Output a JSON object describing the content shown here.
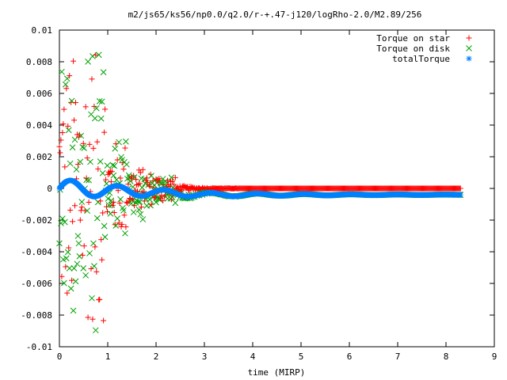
{
  "chart_data": {
    "type": "scatter",
    "title": "m2/js65/ks56/np0.0/q2.0/r-+.47-j120/logRho-2.0/M2.89/256",
    "xlabel": "time (MIRP)",
    "ylabel": "",
    "xlim": [
      0,
      9
    ],
    "ylim": [
      -0.01,
      0.01
    ],
    "x_ticks": [
      "0",
      "1",
      "2",
      "3",
      "4",
      "5",
      "6",
      "7",
      "8",
      "9"
    ],
    "y_ticks": [
      "0.01",
      "0.008",
      "0.006",
      "0.004",
      "0.002",
      "0",
      "-0.002",
      "-0.004",
      "-0.006",
      "-0.008",
      "-0.01"
    ],
    "legend_position": "top-right",
    "grid": false,
    "series": [
      {
        "name": "Torque on star",
        "marker": "plus",
        "color": "#ff0000"
      },
      {
        "name": "Torque on disk",
        "marker": "cross",
        "color": "#00a000"
      },
      {
        "name": "totalTorque",
        "marker": "star",
        "color": "#0080ff"
      }
    ],
    "x_end": 8.3,
    "total_torque_plateau": -0.0004,
    "star_torque_plateau": 0.0
  }
}
